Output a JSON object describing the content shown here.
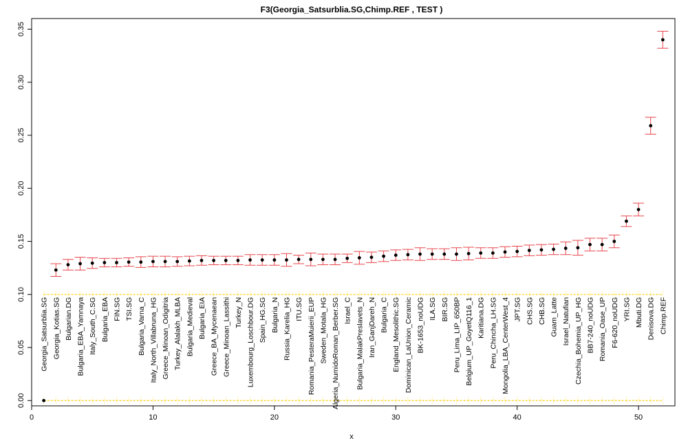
{
  "chart_data": {
    "type": "scatter",
    "title": "F3(Georgia_Satsurblia.SG,Chimp.REF ,  TEST )",
    "xlabel": "x",
    "ylabel": "",
    "xlim": [
      0,
      53
    ],
    "ylim": [
      -0.005,
      0.36
    ],
    "x_ticks": [
      0,
      10,
      20,
      30,
      40,
      50
    ],
    "y_ticks": [
      0.0,
      0.05,
      0.1,
      0.15,
      0.2,
      0.25,
      0.3,
      0.35
    ],
    "x_tick_labels": [
      "0",
      "10",
      "20",
      "30",
      "40",
      "50"
    ],
    "y_tick_labels": [
      "0.00",
      "0.05",
      "0.10",
      "0.15",
      "0.20",
      "0.25",
      "0.30",
      "0.35"
    ],
    "grid": false,
    "point_color": "#000000",
    "error_bar_color": "#e8434a",
    "reference_line_color": "#ffd21a",
    "reference_lines": [
      0.0,
      0.1
    ],
    "labels": [
      "Georgia_Satsurblia.SG",
      "Georgia_Kotias.SG",
      "Bulgarian.DG",
      "Bulgaria_EBA_Yamnaya",
      "Italy_South_C.SG",
      "Bulgaria_EBA",
      "FIN.SG",
      "TSI.SG",
      "Bulgaria_Varna_C",
      "Italy_North_Villabruna_HG",
      "Greece_Minoan_Odigitria",
      "Turkey_Alalakh_MLBA",
      "Bulgaria_Medieval",
      "Bulgaria_EIA",
      "Greece_BA_Mycenaean",
      "Greece_Minoan_Lassithi",
      "Turkey_N",
      "Luxembourg_Loschbour.DG",
      "Spain_HG.SG",
      "Bulgaria_N",
      "Russia_Karelia_HG",
      "ITU.SG",
      "Romania_PesteraMuierii_EUP",
      "Sweden_Motala_HG",
      "Algeria_NumidoRoman_Berber.SG",
      "Israel_C",
      "Bulgaria_MalakPreslavets_N",
      "Iran_GanjDareh_N",
      "Bulgaria_C",
      "England_Mesolithic.SG",
      "Dominican_LaUnion_Ceramic",
      "BK-1653_noUDG",
      "ILA.SG",
      "BIR.SG",
      "Peru_Lima_LIP_650BP",
      "Belgium_UP_GoyetQ116_1",
      "Karitiana.DG",
      "Peru_Chincha_LH.SG",
      "Mongolia_LBA_CenterWest_4",
      "JPT.SG",
      "CHS.SG",
      "CHB.SG",
      "Guam_Latte",
      "Israel_Natufian",
      "Czechia_Bohemia_UP_HG",
      "BB7-240_noUDG",
      "Romania_Oase_UP",
      "F6-620_noUDG",
      "YRI.SG",
      "Mbuti.DG",
      "Denisova.DG",
      "Chimp.REF"
    ],
    "x": [
      1,
      2,
      3,
      4,
      5,
      6,
      7,
      8,
      9,
      10,
      11,
      12,
      13,
      14,
      15,
      16,
      17,
      18,
      19,
      20,
      21,
      22,
      23,
      24,
      25,
      26,
      27,
      28,
      29,
      30,
      31,
      32,
      33,
      34,
      35,
      36,
      37,
      38,
      39,
      40,
      41,
      42,
      43,
      44,
      45,
      46,
      47,
      48,
      49,
      50,
      51,
      52
    ],
    "y": [
      0.0,
      0.123,
      0.128,
      0.129,
      0.1295,
      0.13,
      0.13,
      0.1305,
      0.1305,
      0.131,
      0.131,
      0.131,
      0.1315,
      0.132,
      0.132,
      0.132,
      0.132,
      0.1325,
      0.1325,
      0.1325,
      0.1325,
      0.133,
      0.133,
      0.133,
      0.133,
      0.134,
      0.1345,
      0.135,
      0.136,
      0.137,
      0.1375,
      0.138,
      0.138,
      0.138,
      0.138,
      0.1385,
      0.139,
      0.139,
      0.14,
      0.1405,
      0.1415,
      0.142,
      0.1425,
      0.1435,
      0.144,
      0.147,
      0.147,
      0.15,
      0.169,
      0.18,
      0.259,
      0.34
    ],
    "err": [
      0.0,
      0.006,
      0.005,
      0.006,
      0.005,
      0.004,
      0.004,
      0.004,
      0.005,
      0.005,
      0.005,
      0.0045,
      0.0045,
      0.0045,
      0.004,
      0.004,
      0.004,
      0.005,
      0.005,
      0.005,
      0.006,
      0.004,
      0.006,
      0.005,
      0.005,
      0.004,
      0.006,
      0.005,
      0.005,
      0.005,
      0.005,
      0.006,
      0.005,
      0.005,
      0.006,
      0.006,
      0.005,
      0.005,
      0.005,
      0.005,
      0.005,
      0.005,
      0.005,
      0.006,
      0.007,
      0.006,
      0.006,
      0.006,
      0.005,
      0.006,
      0.008,
      0.008
    ]
  }
}
